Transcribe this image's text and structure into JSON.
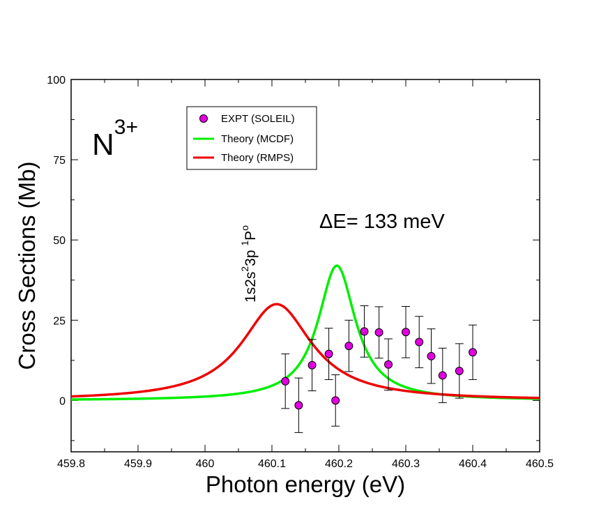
{
  "chart_data": {
    "type": "scatter",
    "xlabel": "Photon energy (eV)",
    "ylabel": "Cross Sections (Mb)",
    "xlim": [
      459.8,
      460.5
    ],
    "ylim": [
      -16,
      100
    ],
    "xticks": [
      459.8,
      459.9,
      460,
      460.1,
      460.2,
      460.3,
      460.4,
      460.5
    ],
    "xtick_labels": [
      "459.8",
      "459.9",
      "460",
      "460.1",
      "460.2",
      "460.3",
      "460.4",
      "460.5"
    ],
    "yticks": [
      0,
      25,
      50,
      75,
      100
    ],
    "ytick_labels": [
      "0",
      "25",
      "50",
      "75",
      "100"
    ],
    "ion_label": {
      "base": "N",
      "superscript": "3+"
    },
    "delta_annotation": "ΔE= 133 meV",
    "state_label": {
      "main": "1s2s",
      "sup1": "2",
      "mid": "3p ",
      "sup2": "1",
      "end": "P",
      "sup3": "o"
    },
    "series": [
      {
        "name": "EXPT (SOLEIL)",
        "kind": "points",
        "color": "#e000e0",
        "points": [
          {
            "x": 460.12,
            "y": 6.0,
            "err": 8.5
          },
          {
            "x": 460.14,
            "y": -1.5,
            "err": 8.5
          },
          {
            "x": 460.16,
            "y": 11.0,
            "err": 8.0
          },
          {
            "x": 460.185,
            "y": 14.5,
            "err": 8.0
          },
          {
            "x": 460.195,
            "y": 0.0,
            "err": 8.0
          },
          {
            "x": 460.215,
            "y": 17.0,
            "err": 8.0
          },
          {
            "x": 460.238,
            "y": 21.5,
            "err": 8.0
          },
          {
            "x": 460.26,
            "y": 21.2,
            "err": 8.0
          },
          {
            "x": 460.274,
            "y": 11.2,
            "err": 8.0
          },
          {
            "x": 460.3,
            "y": 21.3,
            "err": 8.0
          },
          {
            "x": 460.32,
            "y": 18.2,
            "err": 8.0
          },
          {
            "x": 460.338,
            "y": 13.8,
            "err": 8.5
          },
          {
            "x": 460.355,
            "y": 7.8,
            "err": 8.5
          },
          {
            "x": 460.38,
            "y": 9.2,
            "err": 8.5
          },
          {
            "x": 460.4,
            "y": 15.0,
            "err": 8.5
          }
        ]
      },
      {
        "name": "Theory (MCDF)",
        "kind": "line",
        "color": "#00ee00",
        "center": 460.197,
        "fwhm": 0.068,
        "peak": 42
      },
      {
        "name": "Theory (RMPS)",
        "kind": "line",
        "color": "#ee0000",
        "center": 460.107,
        "fwhm": 0.128,
        "peak": 30
      }
    ]
  }
}
